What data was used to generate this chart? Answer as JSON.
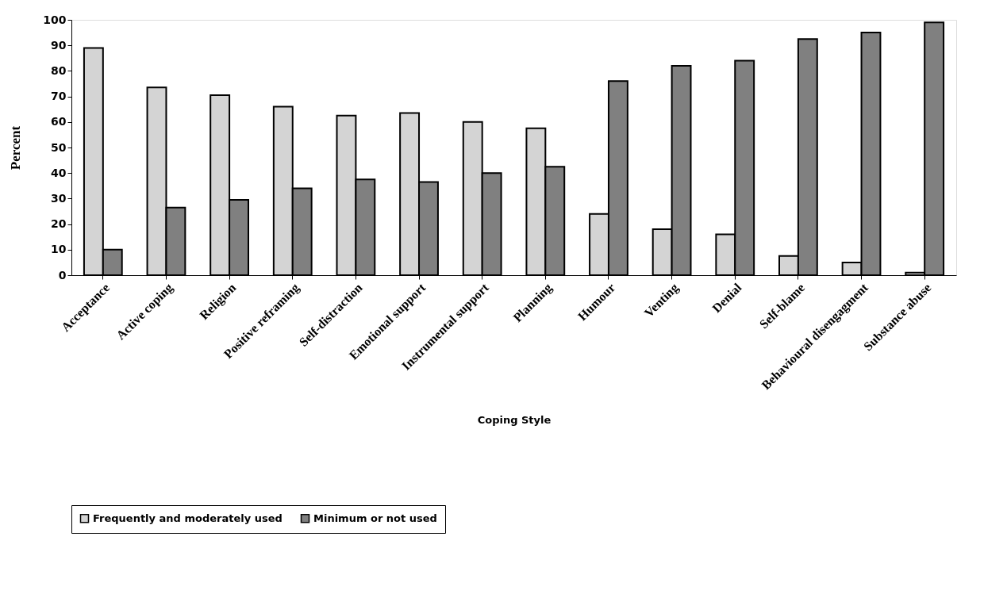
{
  "chart_data": {
    "type": "bar",
    "xlabel": "Coping Style",
    "ylabel": "Percent",
    "categories": [
      "Acceptance",
      "Active coping",
      "Religion",
      "Positive reframing",
      "Self-distraction",
      "Emotional support",
      "Instrumental support",
      "Planning",
      "Humour",
      "Venting",
      "Denial",
      "Self-blame",
      "Behavioural disengagment",
      "Substance abuse"
    ],
    "series": [
      {
        "name": "Frequently and moderately used",
        "color": "#d4d4d4",
        "values": [
          89,
          73.5,
          70.5,
          66,
          62.5,
          63.5,
          60,
          57.5,
          24,
          18,
          16,
          7.5,
          5,
          1
        ]
      },
      {
        "name": "Minimum or not used",
        "color": "#808080",
        "values": [
          10,
          26.5,
          29.5,
          34,
          37.5,
          36.5,
          40,
          42.5,
          76,
          82,
          84,
          92.5,
          95,
          99
        ]
      }
    ],
    "ylim": [
      0,
      100
    ],
    "yticks": [
      0,
      10,
      20,
      30,
      40,
      50,
      60,
      70,
      80,
      90,
      100
    ],
    "grid": false,
    "legend": "bottom"
  }
}
